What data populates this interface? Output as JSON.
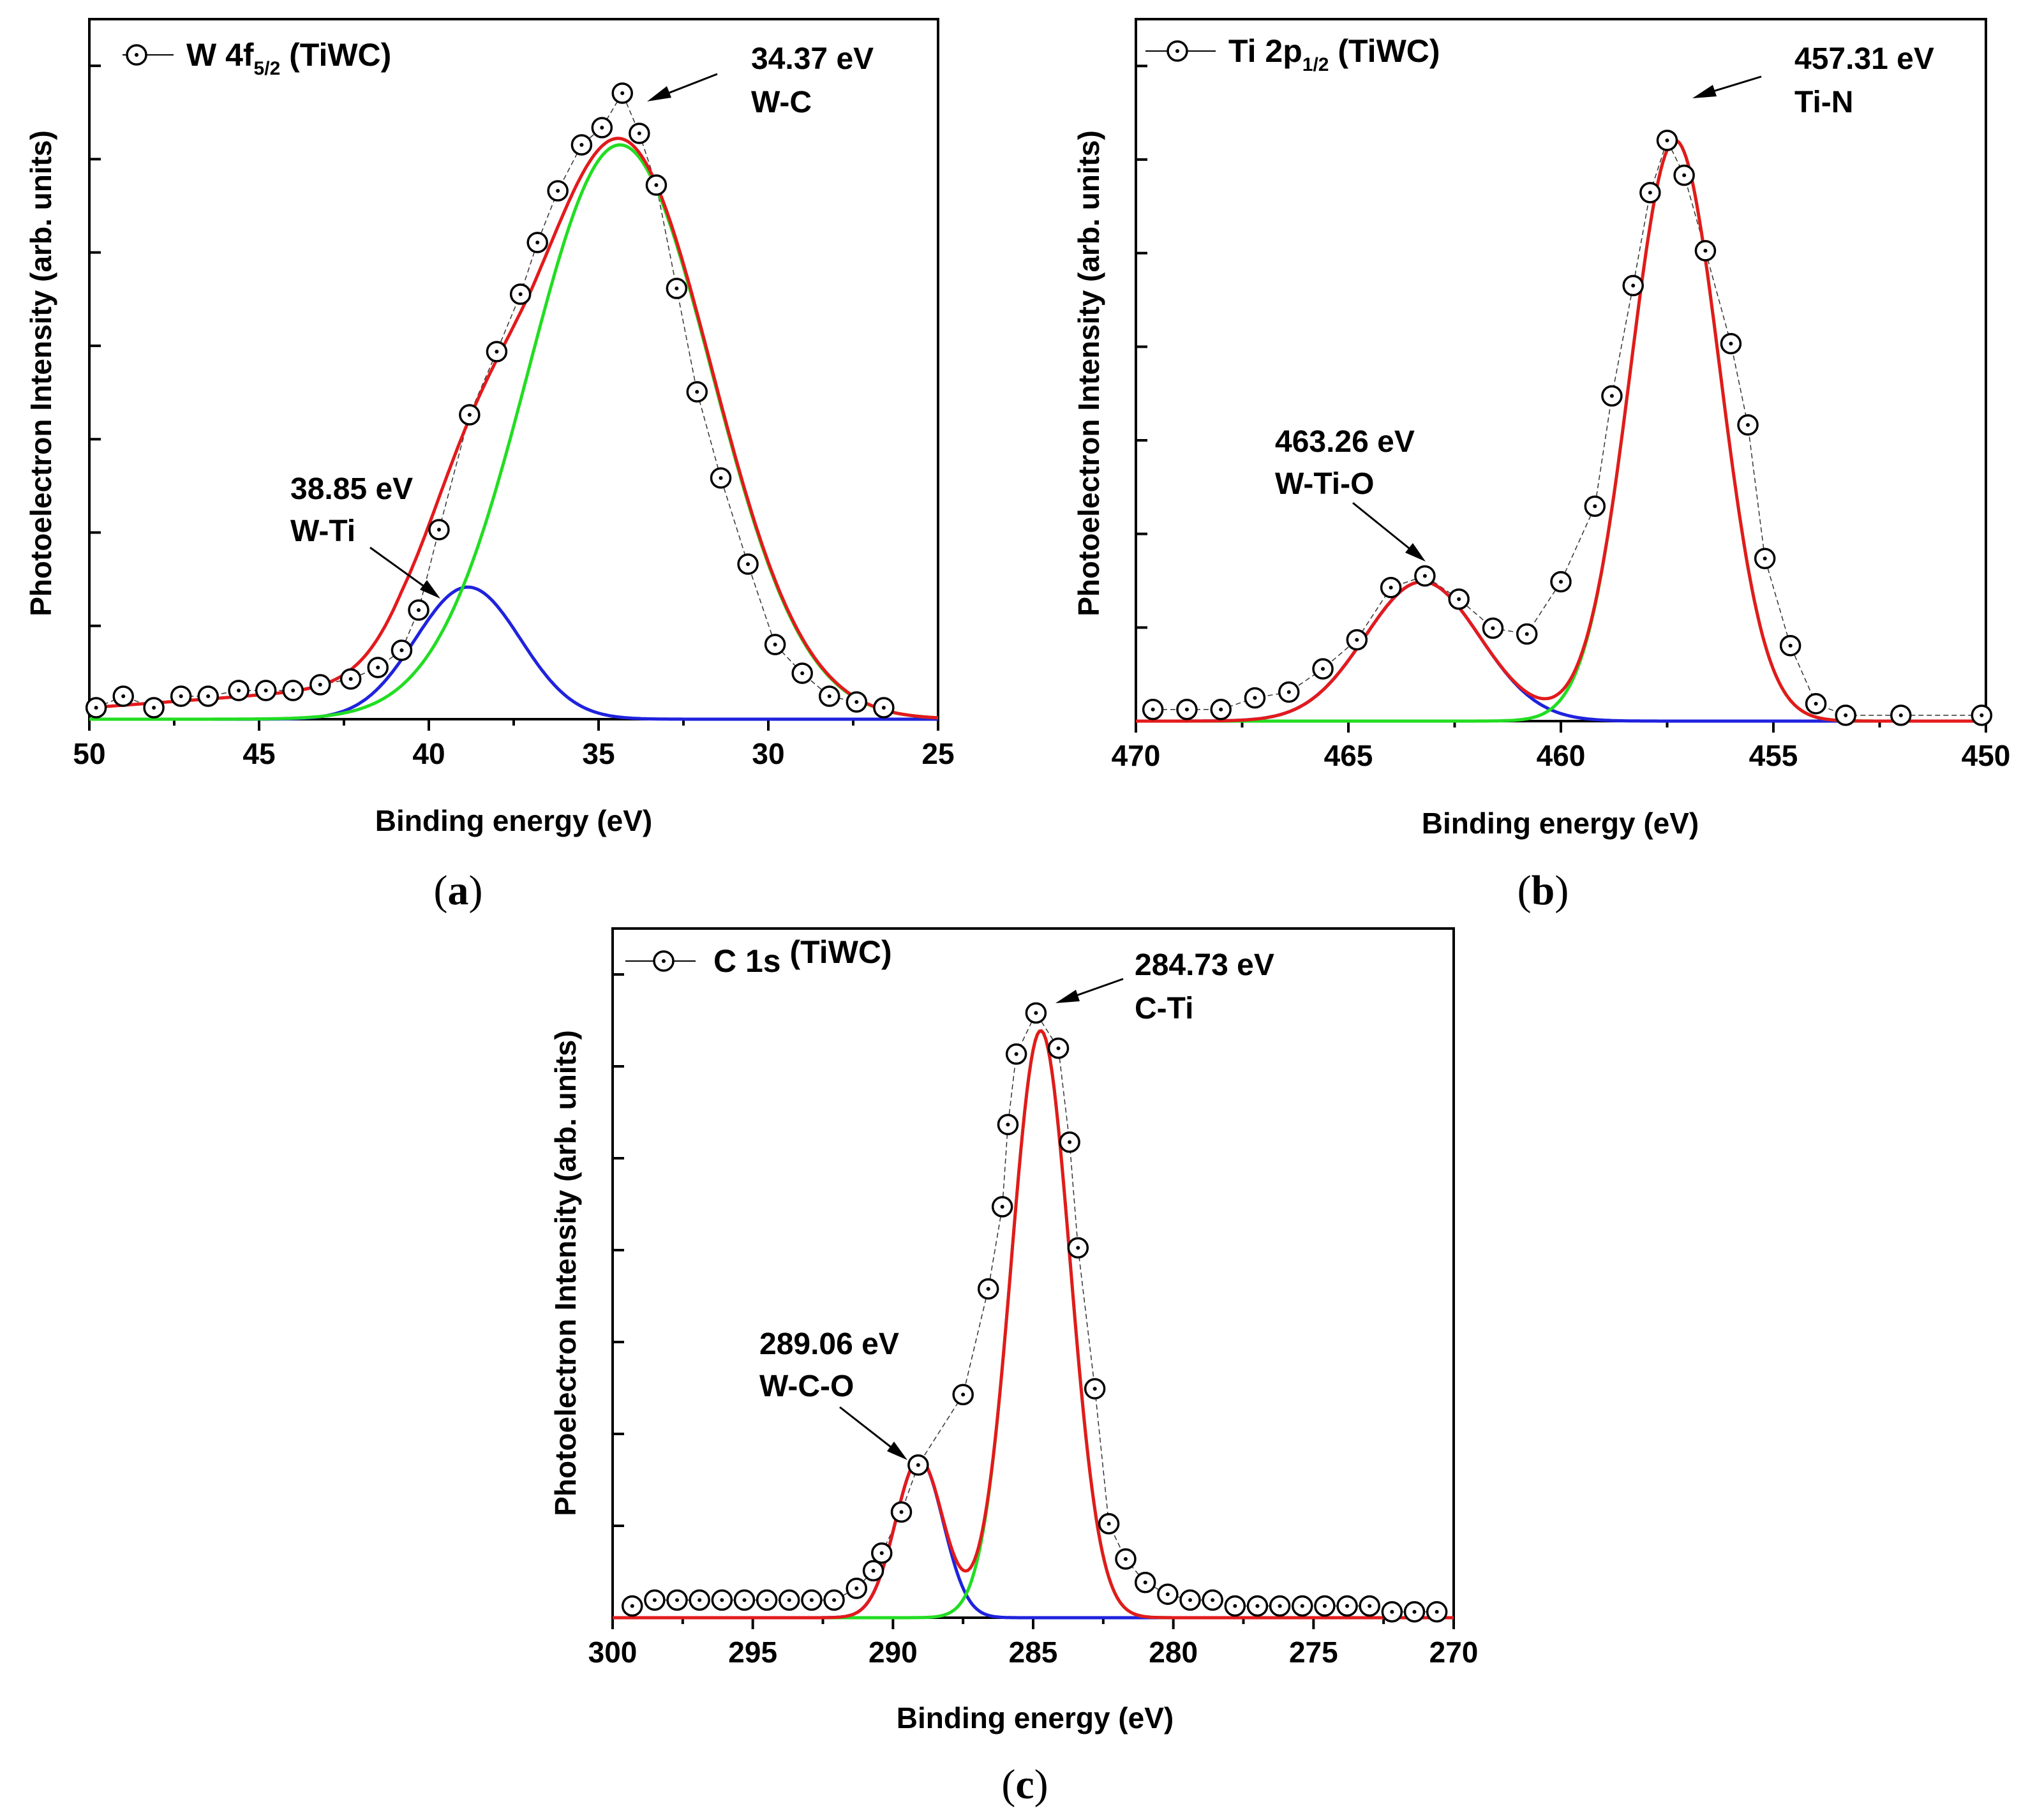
{
  "colors": {
    "total_fit": "#e31a1c",
    "main_peak": "#22dd22",
    "minor_peak": "#1f22dd",
    "markers": "#000000"
  },
  "chart_data": [
    {
      "type": "line",
      "panel_label": "(a)",
      "panel_letter": "a",
      "legend": {
        "prefix": "W 4f",
        "subscript": "5/2",
        "suffix": " (TiWC)",
        "placement": "top-left"
      },
      "xlabel": "Binding energy (eV)",
      "ylabel": "Photoelectron Intensity (arb. units)",
      "xlim": [
        50,
        25
      ],
      "ylim": [
        0,
        100
      ],
      "xticks": [
        50,
        45,
        40,
        35,
        30,
        25
      ],
      "ytick_count": 7,
      "annotations": [
        {
          "value": "34.37 eV",
          "label": "W-C"
        },
        {
          "value": "38.85 eV",
          "label": "W-Ti"
        }
      ],
      "series": [
        {
          "name": "measured",
          "x": [
            49.8,
            49.0,
            48.1,
            47.3,
            46.5,
            45.6,
            44.8,
            44.0,
            43.2,
            42.3,
            41.5,
            40.8,
            40.3,
            39.7,
            38.8,
            38.0,
            37.3,
            36.8,
            36.2,
            35.5,
            34.9,
            34.3,
            33.8,
            33.3,
            32.7,
            32.1,
            31.4,
            30.6,
            29.8,
            29.0,
            28.2,
            27.4,
            26.6
          ],
          "y": [
            2,
            4,
            2,
            4,
            4,
            5,
            5,
            5,
            6,
            7,
            9,
            12,
            19,
            33,
            53,
            64,
            74,
            83,
            92,
            100,
            103,
            109,
            102,
            93,
            75,
            57,
            42,
            27,
            13,
            8,
            4,
            3,
            2
          ]
        },
        {
          "name": "total fit",
          "peaks": [
            {
              "center": 34.37,
              "height": 100,
              "sigma": 2.7
            },
            {
              "center": 38.85,
              "height": 23,
              "sigma": 1.55
            }
          ],
          "background": [
            {
              "x": 50,
              "y": 2
            },
            {
              "x": 40.8,
              "y": 6
            },
            {
              "x": 37,
              "y": 1
            },
            {
              "x": 26.3,
              "y": 0
            }
          ]
        },
        {
          "name": "W-C component",
          "center": 34.37,
          "height": 100,
          "sigma": 2.7
        },
        {
          "name": "W-Ti component",
          "center": 38.85,
          "height": 23,
          "sigma": 1.55
        }
      ]
    },
    {
      "type": "line",
      "panel_label": "(b)",
      "panel_letter": "b",
      "legend": {
        "prefix": "Ti 2p",
        "subscript": "1/2",
        "suffix": " (TiWC)",
        "placement": "top-left"
      },
      "xlabel": "Binding energy (eV)",
      "ylabel": "Photoelectron Intensity (arb. units)",
      "xlim": [
        470,
        450
      ],
      "ylim": [
        0,
        100
      ],
      "xticks": [
        470,
        465,
        460,
        455,
        450
      ],
      "ytick_count": 7,
      "annotations": [
        {
          "value": "457.31 eV",
          "label": "Ti-N"
        },
        {
          "value": "463.26 eV",
          "label": "W-Ti-O"
        }
      ],
      "series": [
        {
          "name": "measured",
          "x": [
            469.6,
            468.8,
            468.0,
            467.2,
            466.4,
            465.6,
            464.8,
            464.0,
            463.2,
            462.4,
            461.6,
            460.8,
            460.0,
            459.2,
            458.8,
            458.3,
            457.9,
            457.5,
            457.1,
            456.6,
            456.0,
            455.6,
            455.2,
            454.6,
            454.0,
            453.3,
            452.0,
            450.1
          ],
          "y": [
            2,
            2,
            2,
            4,
            5,
            9,
            14,
            23,
            25,
            21,
            16,
            15,
            24,
            37,
            56,
            75,
            91,
            100,
            94,
            81,
            65,
            51,
            28,
            13,
            3,
            1,
            1,
            1
          ]
        },
        {
          "name": "total fit",
          "peaks": [
            {
              "center": 457.31,
              "height": 100,
              "sigma": 1.05
            },
            {
              "center": 463.26,
              "height": 24,
              "sigma": 1.35
            }
          ]
        },
        {
          "name": "Ti-N component",
          "center": 457.31,
          "height": 100,
          "sigma": 1.05
        },
        {
          "name": "W-Ti-O component",
          "center": 463.26,
          "height": 24,
          "sigma": 1.35
        }
      ]
    },
    {
      "type": "line",
      "panel_label": "(c)",
      "panel_letter": "c",
      "legend": {
        "prefix": "C 1s",
        "subscript": "",
        "suffix": " (TiWC)",
        "placement": "top-left"
      },
      "xlabel": "Binding energy (eV)",
      "ylabel": "Photoelectron Intensity (arb. units)",
      "xlim": [
        300,
        270
      ],
      "ylim": [
        0,
        100
      ],
      "xticks": [
        300,
        295,
        290,
        285,
        280,
        275,
        270
      ],
      "ytick_count": 7,
      "annotations": [
        {
          "value": "284.73 eV",
          "label": "C-Ti"
        },
        {
          "value": "289.06 eV",
          "label": "W-C-O"
        }
      ],
      "series": [
        {
          "name": "measured",
          "x": [
            299.3,
            298.5,
            297.7,
            296.9,
            296.1,
            295.3,
            294.5,
            293.7,
            292.9,
            292.1,
            291.3,
            290.7,
            290.4,
            289.7,
            289.1,
            287.5,
            286.6,
            286.1,
            285.9,
            285.6,
            284.9,
            284.1,
            283.7,
            283.4,
            282.8,
            282.3,
            281.7,
            281.0,
            280.2,
            279.4,
            278.6,
            277.8,
            277.0,
            276.2,
            275.4,
            274.6,
            273.8,
            273.0,
            272.2,
            271.4,
            270.6
          ],
          "y": [
            2,
            3,
            3,
            3,
            3,
            3,
            3,
            3,
            3,
            3,
            5,
            8,
            11,
            18,
            26,
            38,
            56,
            70,
            84,
            96,
            103,
            97,
            81,
            63,
            39,
            16,
            10,
            6,
            4,
            3,
            3,
            2,
            2,
            2,
            2,
            2,
            2,
            2,
            1,
            1,
            1
          ]
        },
        {
          "name": "total fit",
          "peaks": [
            {
              "center": 284.73,
              "height": 100,
              "sigma": 1.05
            },
            {
              "center": 289.06,
              "height": 27,
              "sigma": 0.85
            }
          ]
        },
        {
          "name": "C-Ti component",
          "center": 284.73,
          "height": 100,
          "sigma": 1.05
        },
        {
          "name": "W-C-O component",
          "center": 289.06,
          "height": 27,
          "sigma": 0.85
        }
      ]
    }
  ]
}
